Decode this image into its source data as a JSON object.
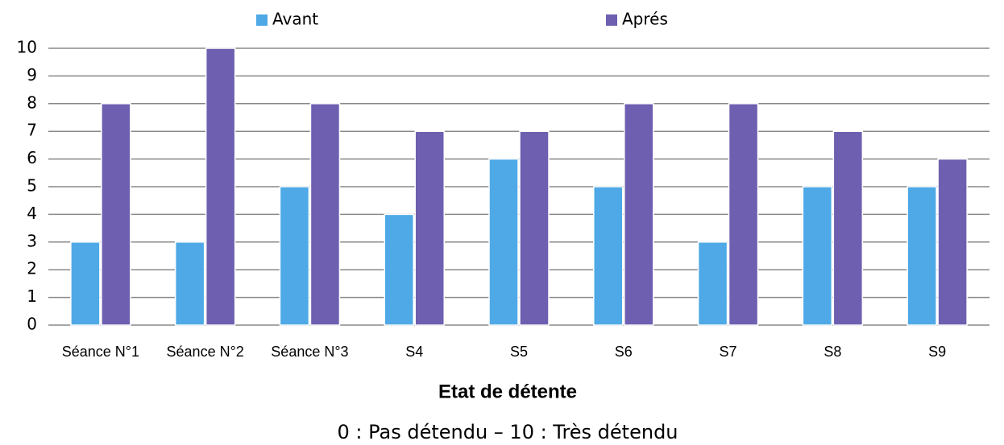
{
  "chart_data": {
    "type": "bar",
    "xlabel": "Etat de détente",
    "subtitle": "0 : Pas détendu – 10 : Très détendu",
    "categories": [
      "Séance N°1",
      "Séance N°2",
      "Séance N°3",
      "S4",
      "S5",
      "S6",
      "S7",
      "S8",
      "S9"
    ],
    "series": [
      {
        "name": "Avant",
        "color": "#4ea9e6",
        "values": [
          3,
          3,
          5,
          4,
          6,
          5,
          3,
          5,
          5
        ]
      },
      {
        "name": "Aprés",
        "color": "#6e5fb0",
        "values": [
          8,
          10,
          8,
          7,
          7,
          8,
          8,
          7,
          6
        ]
      }
    ],
    "ylim": [
      0,
      10
    ],
    "yticks": [
      0,
      1,
      2,
      3,
      4,
      5,
      6,
      7,
      8,
      9,
      10
    ],
    "grid": true,
    "legend": "top"
  }
}
